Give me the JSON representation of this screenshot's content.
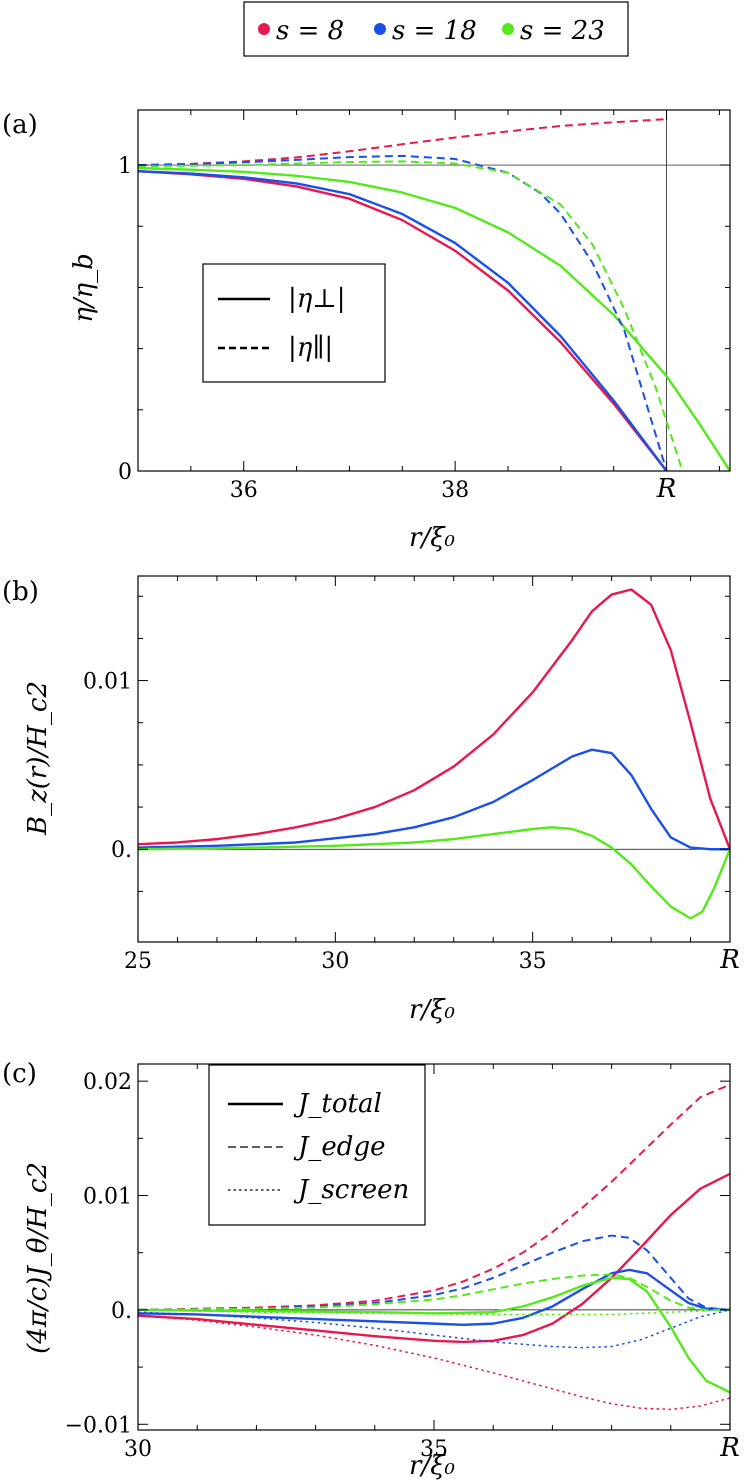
{
  "colors": {
    "s8": "#e8184f",
    "s18": "#1a4fe8",
    "s23": "#55e81a",
    "axis": "#000000"
  },
  "top_legend": {
    "items": [
      {
        "label": "s = 8",
        "color": "#e8184f"
      },
      {
        "label": "s = 18",
        "color": "#1a4fe8"
      },
      {
        "label": "s = 23",
        "color": "#55e81a"
      }
    ]
  },
  "chart_data": [
    {
      "panel": "(a)",
      "type": "line",
      "xlabel": "r/ξ₀",
      "ylabel": "η/η_b",
      "xlim": [
        35.0,
        40.6
      ],
      "ylim": [
        0.0,
        1.18
      ],
      "xticks": [
        {
          "v": 36,
          "label": "36"
        },
        {
          "v": 38,
          "label": "38"
        },
        {
          "v": 40,
          "label": "R"
        }
      ],
      "xminor": [
        35.5,
        36.5,
        37.0,
        37.5,
        38.5,
        39.0,
        39.5,
        40.5
      ],
      "yticks": [
        {
          "v": 0,
          "label": "0"
        },
        {
          "v": 1,
          "label": "1"
        }
      ],
      "yminor": [
        0.2,
        0.4,
        0.6,
        0.8
      ],
      "ref_h": 1.0,
      "ref_v": 40.0,
      "legend": {
        "placement": "center-left",
        "items": [
          {
            "label": "|η⊥|",
            "style": "solid"
          },
          {
            "label": "|η∥|",
            "style": "dashed"
          }
        ]
      },
      "series": [
        {
          "name": "s=8 |η⊥|",
          "color": "s8",
          "style": "solid",
          "x": [
            35.0,
            35.5,
            36.0,
            36.5,
            37.0,
            37.5,
            38.0,
            38.5,
            39.0,
            39.5,
            40.0
          ],
          "y": [
            0.98,
            0.97,
            0.955,
            0.93,
            0.89,
            0.82,
            0.72,
            0.59,
            0.42,
            0.22,
            0.0
          ]
        },
        {
          "name": "s=18 |η⊥|",
          "color": "s18",
          "style": "solid",
          "x": [
            35.0,
            35.5,
            36.0,
            36.5,
            37.0,
            37.5,
            38.0,
            38.5,
            39.0,
            39.5,
            40.0
          ],
          "y": [
            0.98,
            0.972,
            0.96,
            0.94,
            0.905,
            0.84,
            0.745,
            0.615,
            0.44,
            0.23,
            0.0
          ]
        },
        {
          "name": "s=23 |η⊥|",
          "color": "s23",
          "style": "solid",
          "x": [
            35.0,
            35.5,
            36.0,
            36.5,
            37.0,
            37.5,
            38.0,
            38.5,
            39.0,
            39.5,
            40.0,
            40.3,
            40.6
          ],
          "y": [
            0.99,
            0.985,
            0.978,
            0.965,
            0.945,
            0.91,
            0.86,
            0.78,
            0.67,
            0.51,
            0.31,
            0.16,
            0.0
          ]
        },
        {
          "name": "s=8 |η∥|",
          "color": "s8",
          "style": "dashed",
          "x": [
            35.0,
            35.5,
            36.0,
            36.5,
            37.0,
            37.5,
            38.0,
            38.5,
            39.0,
            39.5,
            40.0
          ],
          "y": [
            1.0,
            1.004,
            1.012,
            1.025,
            1.045,
            1.068,
            1.09,
            1.11,
            1.128,
            1.14,
            1.15
          ]
        },
        {
          "name": "s=18 |η∥|",
          "color": "s18",
          "style": "dashed",
          "x": [
            35.0,
            35.5,
            36.0,
            36.5,
            37.0,
            37.5,
            38.0,
            38.5,
            38.8,
            39.0,
            39.3,
            39.6,
            40.0
          ],
          "y": [
            1.0,
            1.003,
            1.009,
            1.017,
            1.026,
            1.03,
            1.02,
            0.975,
            0.91,
            0.84,
            0.68,
            0.46,
            0.0
          ]
        },
        {
          "name": "s=23 |η∥|",
          "color": "s23",
          "style": "dashed",
          "x": [
            35.0,
            35.5,
            36.0,
            36.5,
            37.0,
            37.5,
            38.0,
            38.5,
            39.0,
            39.3,
            39.6,
            39.9,
            40.15
          ],
          "y": [
            0.995,
            0.998,
            1.0,
            1.005,
            1.01,
            1.012,
            1.005,
            0.975,
            0.87,
            0.74,
            0.53,
            0.27,
            0.0
          ]
        }
      ]
    },
    {
      "panel": "(b)",
      "type": "line",
      "xlabel": "r/ξ₀",
      "ylabel": "B_z(r)/H_c2",
      "xlim": [
        25.0,
        40.0
      ],
      "ylim": [
        -0.0055,
        0.0162
      ],
      "xticks": [
        {
          "v": 25,
          "label": "25"
        },
        {
          "v": 30,
          "label": "30"
        },
        {
          "v": 35,
          "label": "35"
        },
        {
          "v": 40,
          "label": "R"
        }
      ],
      "xminor": [
        26,
        27,
        28,
        29,
        31,
        32,
        33,
        34,
        36,
        37,
        38,
        39
      ],
      "yticks": [
        {
          "v": 0.0,
          "label": "0."
        },
        {
          "v": 0.01,
          "label": "0.01"
        }
      ],
      "yminor": [
        -0.0025,
        0.0025,
        0.005,
        0.0075,
        0.0125,
        0.015
      ],
      "ref_h": 0.0,
      "series": [
        {
          "name": "s=8",
          "color": "s8",
          "style": "solid",
          "x": [
            25,
            26,
            27,
            28,
            29,
            30,
            31,
            32,
            33,
            34,
            35,
            36,
            36.5,
            37,
            37.5,
            38,
            38.5,
            39,
            39.5,
            40
          ],
          "y": [
            0.0003,
            0.0004,
            0.0006,
            0.0009,
            0.0013,
            0.0018,
            0.0025,
            0.0035,
            0.0049,
            0.0068,
            0.0093,
            0.0124,
            0.0141,
            0.0151,
            0.0154,
            0.0145,
            0.0118,
            0.0075,
            0.003,
            0.0
          ]
        },
        {
          "name": "s=18",
          "color": "s18",
          "style": "solid",
          "x": [
            25,
            27,
            29,
            31,
            32,
            33,
            34,
            35,
            35.5,
            36,
            36.5,
            37,
            37.5,
            38,
            38.5,
            39,
            39.5,
            40
          ],
          "y": [
            0.0001,
            0.0002,
            0.0004,
            0.0009,
            0.0013,
            0.0019,
            0.0028,
            0.0041,
            0.0048,
            0.0055,
            0.0059,
            0.0057,
            0.0044,
            0.0024,
            0.0007,
            0.0001,
            0.0,
            0.0
          ]
        },
        {
          "name": "s=23",
          "color": "s23",
          "style": "solid",
          "x": [
            25,
            28,
            30,
            32,
            33,
            34,
            35,
            35.5,
            36,
            36.5,
            37,
            37.5,
            38,
            38.5,
            39,
            39.3,
            39.6,
            40
          ],
          "y": [
            0.0,
            0.0001,
            0.0002,
            0.0004,
            0.0006,
            0.0009,
            0.0012,
            0.0013,
            0.0012,
            0.0008,
            0.0001,
            -0.0009,
            -0.0022,
            -0.0034,
            -0.0041,
            -0.0037,
            -0.0023,
            0.0
          ]
        }
      ]
    },
    {
      "panel": "(c)",
      "type": "line",
      "xlabel": "r/ξ₀",
      "ylabel": "(4π/c)J_θ/H_c2",
      "xlim": [
        30.0,
        40.0
      ],
      "ylim": [
        -0.0105,
        0.0215
      ],
      "xticks": [
        {
          "v": 30,
          "label": "30"
        },
        {
          "v": 35,
          "label": "35"
        },
        {
          "v": 40,
          "label": "R"
        }
      ],
      "xminor": [
        31,
        32,
        33,
        34,
        36,
        37,
        38,
        39
      ],
      "yticks": [
        {
          "v": -0.01,
          "label": "−0.01"
        },
        {
          "v": 0.0,
          "label": "0."
        },
        {
          "v": 0.01,
          "label": "0.01"
        },
        {
          "v": 0.02,
          "label": "0.02"
        }
      ],
      "yminor": [
        -0.005,
        0.005,
        0.015
      ],
      "ref_h": 0.0,
      "legend": {
        "placement": "top-left",
        "items": [
          {
            "label": "J_total",
            "style": "solid"
          },
          {
            "label": "J_edge",
            "style": "dashed"
          },
          {
            "label": "J_screen",
            "style": "dotted"
          }
        ]
      },
      "series": [
        {
          "name": "s=8 J_total",
          "color": "s8",
          "style": "solid",
          "x": [
            30,
            31,
            32,
            33,
            34,
            35,
            35.5,
            36,
            36.5,
            37,
            37.5,
            38,
            38.5,
            39,
            39.5,
            40
          ],
          "y": [
            -0.0005,
            -0.0008,
            -0.0013,
            -0.0018,
            -0.0023,
            -0.0027,
            -0.0028,
            -0.0027,
            -0.0022,
            -0.0012,
            0.0005,
            0.0028,
            0.0055,
            0.0083,
            0.0106,
            0.0119
          ]
        },
        {
          "name": "s=18 J_total",
          "color": "s18",
          "style": "solid",
          "x": [
            30,
            31,
            32,
            33,
            34,
            35,
            35.5,
            36,
            36.5,
            37,
            37.5,
            38,
            38.3,
            38.6,
            39,
            39.3,
            39.6,
            40
          ],
          "y": [
            -0.0003,
            -0.0004,
            -0.0006,
            -0.0008,
            -0.001,
            -0.0012,
            -0.0013,
            -0.0012,
            -0.0007,
            0.0003,
            0.0018,
            0.0032,
            0.0035,
            0.0032,
            0.0017,
            0.0006,
            0.0001,
            0.0
          ]
        },
        {
          "name": "s=23 J_total",
          "color": "s23",
          "style": "solid",
          "x": [
            30,
            32,
            34,
            35,
            36,
            36.5,
            37,
            37.5,
            38,
            38.3,
            38.6,
            39,
            39.3,
            39.6,
            40
          ],
          "y": [
            0.0,
            -0.0001,
            -0.0002,
            -0.0003,
            -0.0002,
            0.0003,
            0.0011,
            0.0021,
            0.0028,
            0.0027,
            0.0016,
            -0.0015,
            -0.0042,
            -0.0062,
            -0.0072
          ]
        },
        {
          "name": "s=8 J_edge",
          "color": "s8",
          "style": "dashed",
          "x": [
            30,
            31,
            32,
            33,
            34,
            35,
            35.5,
            36,
            36.5,
            37,
            37.5,
            38,
            38.5,
            39,
            39.5,
            40
          ],
          "y": [
            0.0,
            0.0001,
            0.0002,
            0.0004,
            0.0008,
            0.0017,
            0.0025,
            0.0036,
            0.005,
            0.0068,
            0.0089,
            0.0112,
            0.0137,
            0.0162,
            0.0186,
            0.0197
          ]
        },
        {
          "name": "s=18 J_edge",
          "color": "s18",
          "style": "dashed",
          "x": [
            30,
            32,
            33,
            34,
            35,
            35.5,
            36,
            36.5,
            37,
            37.5,
            38,
            38.3,
            38.6,
            39,
            39.3,
            39.6,
            40
          ],
          "y": [
            0.0,
            0.0001,
            0.0003,
            0.0006,
            0.0013,
            0.0019,
            0.0028,
            0.0039,
            0.005,
            0.006,
            0.0065,
            0.0063,
            0.0052,
            0.0028,
            0.001,
            0.0002,
            0.0
          ]
        },
        {
          "name": "s=23 J_edge",
          "color": "s23",
          "style": "dashed",
          "x": [
            30,
            32,
            33,
            34,
            35,
            35.5,
            36,
            36.5,
            37,
            37.5,
            38,
            38.3,
            38.6,
            39,
            39.3,
            39.6,
            40
          ],
          "y": [
            0.0,
            0.0001,
            0.0002,
            0.0005,
            0.0009,
            0.0013,
            0.0018,
            0.0023,
            0.0027,
            0.003,
            0.0031,
            0.0028,
            0.002,
            0.0008,
            0.0002,
            0.0,
            0.0
          ]
        },
        {
          "name": "s=8 J_screen",
          "color": "s8",
          "style": "dotted",
          "x": [
            30,
            31,
            32,
            33,
            34,
            35,
            36,
            37,
            37.5,
            38,
            38.5,
            39,
            39.5,
            40
          ],
          "y": [
            -0.0005,
            -0.0009,
            -0.0015,
            -0.0022,
            -0.0031,
            -0.0042,
            -0.0055,
            -0.0069,
            -0.0076,
            -0.0082,
            -0.0086,
            -0.0087,
            -0.0084,
            -0.0077
          ]
        },
        {
          "name": "s=18 J_screen",
          "color": "s18",
          "style": "dotted",
          "x": [
            30,
            31,
            32,
            33,
            34,
            35,
            36,
            37,
            37.5,
            38,
            38.5,
            39,
            39.5,
            40
          ],
          "y": [
            -0.0002,
            -0.0004,
            -0.0007,
            -0.0011,
            -0.0016,
            -0.0022,
            -0.0028,
            -0.0032,
            -0.0033,
            -0.0032,
            -0.0026,
            -0.0016,
            -0.0006,
            0.0
          ]
        },
        {
          "name": "s=23 J_screen",
          "color": "s23",
          "style": "dotted",
          "x": [
            30,
            32,
            34,
            36,
            38,
            39,
            40
          ],
          "y": [
            0.0,
            -0.0002,
            -0.0003,
            -0.0004,
            -0.0004,
            -0.0002,
            0.0
          ]
        }
      ]
    }
  ]
}
